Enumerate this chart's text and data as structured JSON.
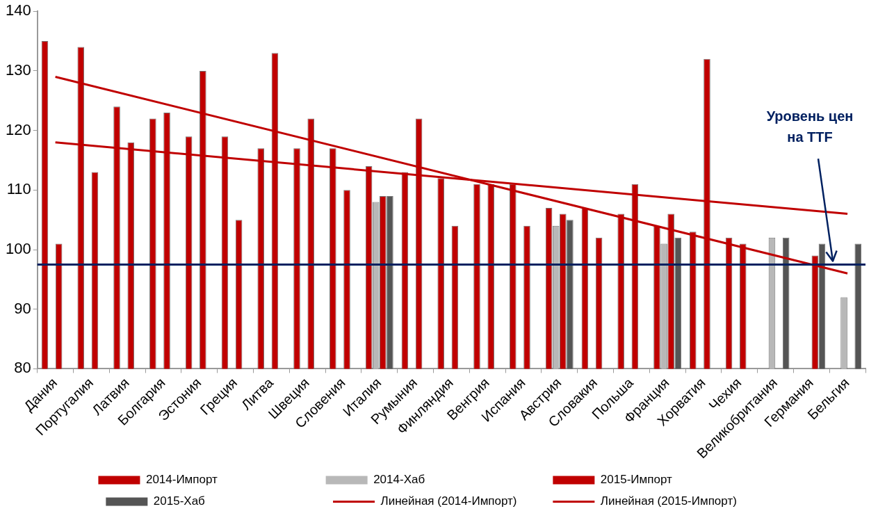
{
  "chart_data": {
    "type": "bar",
    "categories": [
      "Дания",
      "Португалия",
      "Латвия",
      "Болгария",
      "Эстония",
      "Греция",
      "Литва",
      "Швеция",
      "Словения",
      "Италия",
      "Румыния",
      "Финляндия",
      "Венгрия",
      "Испания",
      "Австрия",
      "Словакия",
      "Польша",
      "Франция",
      "Хорватия",
      "Чехия",
      "Великобритания",
      "Германия",
      "Бельгия"
    ],
    "series": [
      {
        "name": "2014-Импорт",
        "color": "#c00000",
        "values": [
          135,
          134,
          124,
          122,
          119,
          119,
          117,
          117,
          117,
          114,
          113,
          112,
          111,
          111,
          107,
          107,
          106,
          104,
          103,
          102,
          null,
          null,
          null
        ]
      },
      {
        "name": "2014-Хаб",
        "color": "#b8b8b8",
        "values": [
          null,
          null,
          null,
          null,
          null,
          null,
          null,
          null,
          null,
          108,
          null,
          null,
          null,
          null,
          104,
          null,
          null,
          101,
          null,
          null,
          102,
          null,
          92
        ]
      },
      {
        "name": "2015-Импорт",
        "color": "#c00000",
        "values": [
          101,
          113,
          118,
          123,
          130,
          105,
          133,
          122,
          110,
          109,
          122,
          104,
          111,
          104,
          106,
          102,
          111,
          106,
          132,
          101,
          null,
          99,
          null
        ]
      },
      {
        "name": "2015-Хаб",
        "color": "#555555",
        "values": [
          null,
          null,
          null,
          null,
          null,
          null,
          null,
          null,
          null,
          109,
          null,
          null,
          null,
          null,
          105,
          null,
          null,
          102,
          null,
          null,
          102,
          101,
          101
        ]
      },
      {
        "name": "Линейная (2014-Импорт)",
        "type": "line",
        "color": "#c00000",
        "x": [
          "Дания",
          "Бельгия"
        ],
        "values": [
          129,
          96
        ]
      },
      {
        "name": "Линейная (2015-Импорт)",
        "type": "line",
        "color": "#c00000",
        "x": [
          "Дания",
          "Бельгия"
        ],
        "values": [
          118,
          106
        ]
      }
    ],
    "ylim": [
      80,
      140
    ],
    "yticks": [
      80,
      90,
      100,
      110,
      120,
      130,
      140
    ],
    "grid": false,
    "legend": "bottom",
    "marker": "none",
    "ref_lines": [
      {
        "axis": "y",
        "value": 97.5,
        "label": "Уровень цен на TTF",
        "color": "#002060"
      }
    ]
  }
}
